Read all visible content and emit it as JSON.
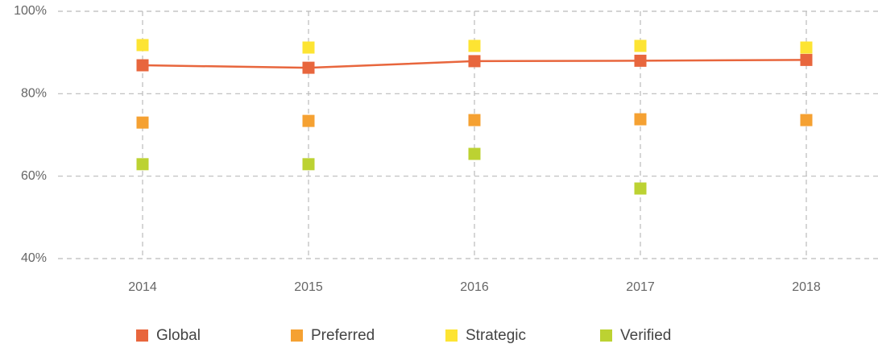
{
  "chart_data": {
    "type": "line",
    "categories": [
      "2014",
      "2015",
      "2016",
      "2017",
      "2018"
    ],
    "series": [
      {
        "name": "Global",
        "color": "#e8663d",
        "mode": "line+markers",
        "values": [
          86.9,
          86.3,
          87.9,
          88.0,
          88.2
        ]
      },
      {
        "name": "Preferred",
        "color": "#f5a132",
        "mode": "markers",
        "values": [
          73.0,
          73.4,
          73.6,
          73.8,
          73.6
        ]
      },
      {
        "name": "Strategic",
        "color": "#fde433",
        "mode": "markers",
        "values": [
          91.8,
          91.2,
          91.6,
          91.6,
          91.2
        ]
      },
      {
        "name": "Verified",
        "color": "#bcd232",
        "mode": "markers",
        "values": [
          62.9,
          62.9,
          65.4,
          57.0,
          null
        ]
      }
    ],
    "ylim": [
      40,
      100
    ],
    "yticks": [
      {
        "value": 40,
        "label": "40%"
      },
      {
        "value": 60,
        "label": "60%"
      },
      {
        "value": 80,
        "label": "80%"
      },
      {
        "value": 100,
        "label": "100%"
      }
    ],
    "grid": true,
    "legend": "bottom"
  }
}
